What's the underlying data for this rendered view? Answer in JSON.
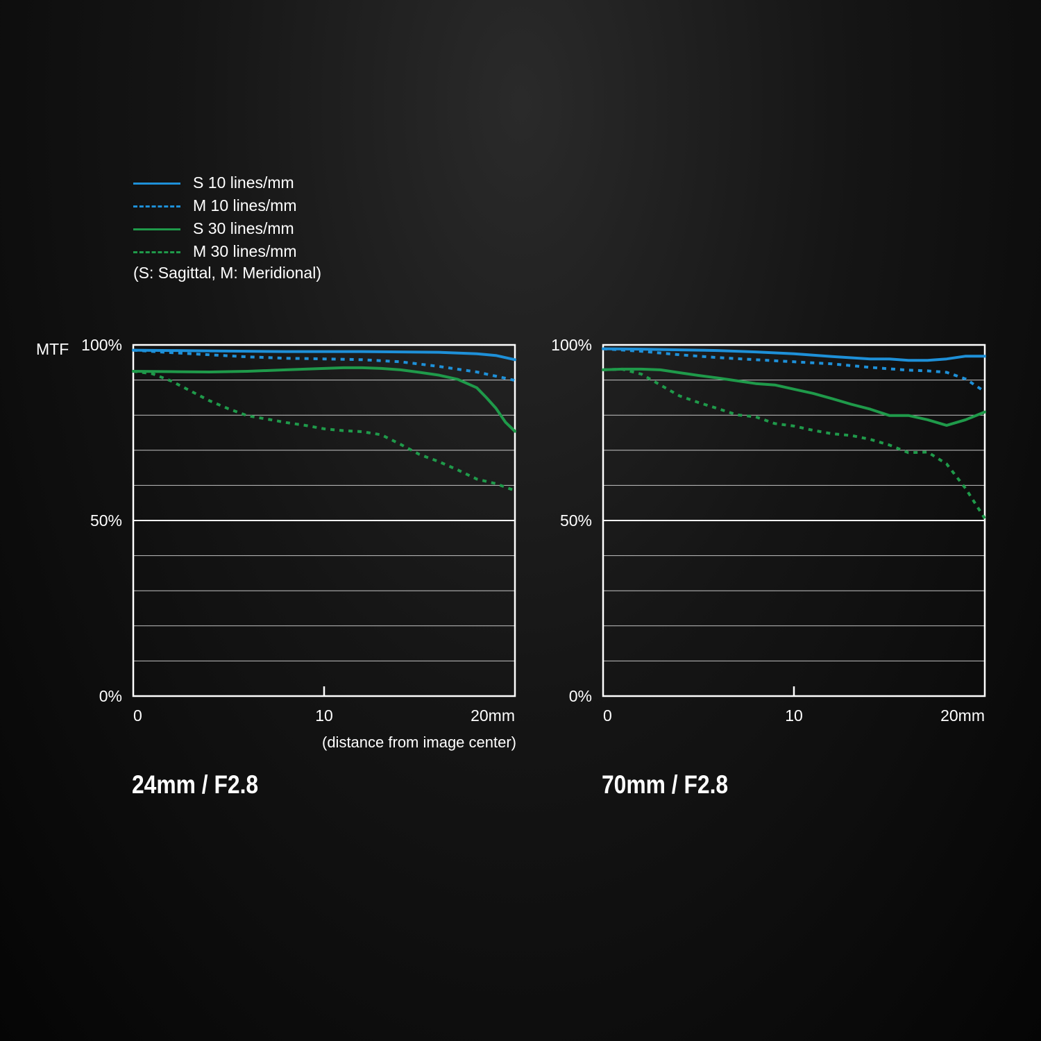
{
  "legend": {
    "items": [
      {
        "label": "S  10 lines/mm",
        "color": "#1e90d8",
        "style": "solid"
      },
      {
        "label": "M 10 lines/mm",
        "color": "#1e90d8",
        "style": "dashed"
      },
      {
        "label": "S  30 lines/mm",
        "color": "#1f9a4a",
        "style": "solid"
      },
      {
        "label": "M 30 lines/mm",
        "color": "#1f9a4a",
        "style": "dashed"
      }
    ],
    "note": "(S: Sagittal, M: Meridional)"
  },
  "colors": {
    "blue": "#1e90d8",
    "green": "#1f9a4a",
    "background": "#0a0a0a",
    "grid": "#ffffff"
  },
  "chart_data": [
    {
      "type": "line",
      "title": "24mm / F2.8",
      "ylabel": "MTF",
      "xlabel": "(distance from image center)",
      "xlim": [
        0,
        20
      ],
      "ylim": [
        0,
        100
      ],
      "x_ticks": [
        "0",
        "10",
        "20mm"
      ],
      "y_ticks": [
        "0%",
        "50%",
        "100%"
      ],
      "grid": true,
      "series": [
        {
          "name": "S  10 lines/mm",
          "x": [
            0,
            2,
            4,
            6,
            8,
            10,
            12,
            14,
            16,
            18,
            19,
            20
          ],
          "y": [
            98.5,
            98.4,
            98.3,
            98.2,
            98.1,
            98.1,
            98.1,
            98.0,
            97.9,
            97.5,
            97.0,
            95.8
          ]
        },
        {
          "name": "M 10 lines/mm",
          "x": [
            0,
            2,
            4,
            6,
            8,
            10,
            12,
            14,
            16,
            18,
            19,
            20
          ],
          "y": [
            98.5,
            97.8,
            97.2,
            96.6,
            96.2,
            96.0,
            95.8,
            95.2,
            93.9,
            92.3,
            91.1,
            89.9
          ]
        },
        {
          "name": "S  30 lines/mm",
          "x": [
            0,
            2,
            4,
            6,
            8,
            10,
            11,
            12,
            13,
            14,
            15,
            16,
            17,
            18,
            18.5,
            19,
            19.5,
            20
          ],
          "y": [
            92.5,
            92.4,
            92.3,
            92.5,
            92.9,
            93.3,
            93.5,
            93.5,
            93.3,
            92.9,
            92.2,
            91.4,
            90.2,
            87.8,
            85.0,
            82.0,
            78.0,
            75.4
          ]
        },
        {
          "name": "M 30 lines/mm",
          "x": [
            0,
            1,
            2,
            3,
            4,
            5,
            6,
            7,
            8,
            9,
            10,
            11,
            12,
            13,
            14,
            15,
            16,
            17,
            18,
            19,
            20
          ],
          "y": [
            92.5,
            91.8,
            89.7,
            86.9,
            84.1,
            81.8,
            79.8,
            78.9,
            77.9,
            77.1,
            76.1,
            75.6,
            75.3,
            74.4,
            71.7,
            68.8,
            66.8,
            64.4,
            61.8,
            60.5,
            58.5
          ]
        }
      ]
    },
    {
      "type": "line",
      "title": "70mm / F2.8",
      "ylabel": "",
      "xlabel": "",
      "xlim": [
        0,
        20
      ],
      "ylim": [
        0,
        100
      ],
      "x_ticks": [
        "0",
        "10",
        "20mm"
      ],
      "y_ticks": [
        "0%",
        "50%",
        "100%"
      ],
      "grid": true,
      "series": [
        {
          "name": "S  10 lines/mm",
          "x": [
            0,
            2,
            4,
            6,
            8,
            10,
            12,
            14,
            15,
            16,
            17,
            18,
            19,
            20
          ],
          "y": [
            98.9,
            98.8,
            98.6,
            98.4,
            98.0,
            97.5,
            96.7,
            96.0,
            96.0,
            95.6,
            95.6,
            96.0,
            96.8,
            96.8
          ]
        },
        {
          "name": "M 10 lines/mm",
          "x": [
            0,
            2,
            4,
            6,
            8,
            10,
            12,
            14,
            16,
            17,
            18,
            19,
            20
          ],
          "y": [
            98.9,
            98.2,
            97.2,
            96.4,
            95.8,
            95.2,
            94.6,
            93.6,
            92.8,
            92.6,
            92.2,
            90.3,
            86.7
          ]
        },
        {
          "name": "S  30 lines/mm",
          "x": [
            0,
            1,
            2,
            3,
            4,
            5,
            6,
            7,
            8,
            9,
            10,
            11,
            12,
            13,
            14,
            15,
            16,
            17,
            18,
            19,
            20
          ],
          "y": [
            92.9,
            93.1,
            93.1,
            92.9,
            92.1,
            91.3,
            90.6,
            89.8,
            89.0,
            88.6,
            87.4,
            86.2,
            84.7,
            83.1,
            81.7,
            79.9,
            79.9,
            78.7,
            77.1,
            78.7,
            80.9
          ]
        },
        {
          "name": "M 30 lines/mm",
          "x": [
            0,
            1,
            2,
            3,
            4,
            5,
            6,
            7,
            8,
            9,
            10,
            11,
            12,
            13,
            14,
            15,
            16,
            17,
            18,
            19,
            20
          ],
          "y": [
            92.9,
            93.1,
            91.7,
            88.6,
            85.5,
            83.6,
            81.9,
            80.1,
            79.5,
            77.6,
            76.9,
            75.7,
            74.7,
            74.2,
            73.1,
            71.5,
            69.3,
            69.5,
            66.1,
            59.1,
            50.6
          ]
        }
      ]
    }
  ]
}
